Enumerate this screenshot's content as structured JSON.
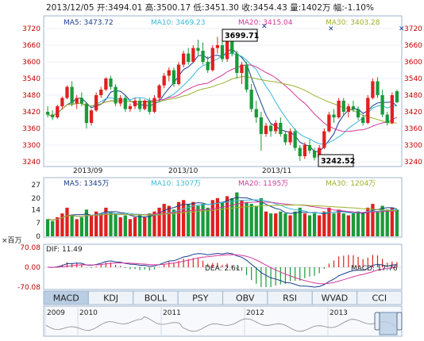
{
  "header": {
    "date": "2013/12/05",
    "open_label": "开:",
    "open": "3494.01",
    "high_label": "高:",
    "high": "3500.17",
    "low_label": "低:",
    "low": "3451.30",
    "close_label": "收:",
    "close": "3454.43",
    "volume_label": "量:",
    "volume": "1402万",
    "change_label": "幅:",
    "change": "-1.10%"
  },
  "price_ma": [
    {
      "label": "MA5: 3473.72",
      "color": "#1a3d8f"
    },
    {
      "label": "MA10: 3469.23",
      "color": "#3bb8d8"
    },
    {
      "label": "MA20: 3415.04",
      "color": "#d4379b"
    },
    {
      "label": "MA30: 3403.28",
      "color": "#9ab22a"
    }
  ],
  "price_axis": [
    "3720",
    "3660",
    "3600",
    "3540",
    "3480",
    "3420",
    "3360",
    "3300",
    "3240"
  ],
  "date_labels": [
    "2013/09",
    "2013/10",
    "2013/11"
  ],
  "callouts": {
    "high": "3699.71",
    "low": "3242.52"
  },
  "volume_ma": [
    {
      "label": "MA5: 1345万",
      "color": "#1a3d8f"
    },
    {
      "label": "MA10: 1307万",
      "color": "#3bb8d8"
    },
    {
      "label": "MA20: 1195万",
      "color": "#d4379b"
    },
    {
      "label": "MA30: 1204万",
      "color": "#9ab22a"
    }
  ],
  "volume_axis": [
    "27",
    "20",
    "14",
    "7",
    "0"
  ],
  "volume_unit": "×百万",
  "macd_labels": {
    "dif": "DIF: 11.49",
    "dea": "DEA: 2.61",
    "macd": "MACD: 17.76",
    "dif_color": "#1a3d8f",
    "dea_color": "#d4379b",
    "macd_color": "#c40000"
  },
  "macd_axis": [
    "70.08",
    "0.00",
    "-70.08"
  ],
  "tabs": [
    "MACD",
    "KDJ",
    "BOLL",
    "PSY",
    "OBV",
    "RSI",
    "WVAD",
    "CCI"
  ],
  "active_tab": "MACD",
  "timeline_years": [
    "2009",
    "2010",
    "2011",
    "2012",
    "2013"
  ],
  "colors": {
    "up": "#e02020",
    "down": "#1a9a3a",
    "axis": "#c40000",
    "border": "#9fb4cc",
    "tab_active": "#b9cde3"
  },
  "chart_data": {
    "type": "candlestick",
    "ylim": [
      3240,
      3720
    ],
    "candles": [
      [
        3420,
        3440,
        3400,
        3410
      ],
      [
        3410,
        3425,
        3390,
        3400
      ],
      [
        3400,
        3445,
        3395,
        3440
      ],
      [
        3440,
        3475,
        3430,
        3470
      ],
      [
        3470,
        3515,
        3465,
        3510
      ],
      [
        3510,
        3530,
        3440,
        3450
      ],
      [
        3450,
        3480,
        3430,
        3470
      ],
      [
        3470,
        3490,
        3440,
        3450
      ],
      [
        3450,
        3455,
        3360,
        3380
      ],
      [
        3380,
        3430,
        3370,
        3425
      ],
      [
        3425,
        3490,
        3420,
        3480
      ],
      [
        3480,
        3510,
        3470,
        3500
      ],
      [
        3500,
        3545,
        3495,
        3540
      ],
      [
        3540,
        3550,
        3500,
        3510
      ],
      [
        3510,
        3520,
        3440,
        3450
      ],
      [
        3450,
        3480,
        3440,
        3470
      ],
      [
        3470,
        3480,
        3420,
        3430
      ],
      [
        3430,
        3450,
        3420,
        3440
      ],
      [
        3440,
        3470,
        3430,
        3460
      ],
      [
        3460,
        3470,
        3420,
        3430
      ],
      [
        3430,
        3465,
        3425,
        3460
      ],
      [
        3460,
        3470,
        3410,
        3420
      ],
      [
        3420,
        3480,
        3415,
        3470
      ],
      [
        3470,
        3520,
        3460,
        3515
      ],
      [
        3515,
        3560,
        3505,
        3550
      ],
      [
        3550,
        3580,
        3530,
        3570
      ],
      [
        3570,
        3580,
        3510,
        3520
      ],
      [
        3520,
        3600,
        3515,
        3590
      ],
      [
        3590,
        3640,
        3580,
        3630
      ],
      [
        3630,
        3650,
        3590,
        3600
      ],
      [
        3600,
        3660,
        3595,
        3650
      ],
      [
        3650,
        3680,
        3620,
        3640
      ],
      [
        3640,
        3670,
        3590,
        3600
      ],
      [
        3600,
        3620,
        3560,
        3570
      ],
      [
        3570,
        3660,
        3565,
        3650
      ],
      [
        3650,
        3690,
        3630,
        3660
      ],
      [
        3660,
        3680,
        3600,
        3610
      ],
      [
        3610,
        3700,
        3600,
        3690
      ],
      [
        3690,
        3700,
        3620,
        3630
      ],
      [
        3630,
        3640,
        3540,
        3560
      ],
      [
        3560,
        3600,
        3520,
        3590
      ],
      [
        3590,
        3600,
        3490,
        3500
      ],
      [
        3500,
        3520,
        3420,
        3430
      ],
      [
        3430,
        3460,
        3380,
        3400
      ],
      [
        3400,
        3420,
        3280,
        3340
      ],
      [
        3340,
        3380,
        3330,
        3370
      ],
      [
        3370,
        3380,
        3330,
        3350
      ],
      [
        3350,
        3390,
        3340,
        3380
      ],
      [
        3380,
        3400,
        3330,
        3340
      ],
      [
        3340,
        3350,
        3300,
        3310
      ],
      [
        3310,
        3360,
        3300,
        3350
      ],
      [
        3350,
        3360,
        3280,
        3290
      ],
      [
        3290,
        3300,
        3243,
        3260
      ],
      [
        3260,
        3310,
        3250,
        3300
      ],
      [
        3300,
        3320,
        3270,
        3280
      ],
      [
        3280,
        3290,
        3245,
        3255
      ],
      [
        3255,
        3300,
        3250,
        3290
      ],
      [
        3290,
        3360,
        3285,
        3350
      ],
      [
        3350,
        3420,
        3345,
        3410
      ],
      [
        3410,
        3430,
        3380,
        3400
      ],
      [
        3400,
        3470,
        3395,
        3460
      ],
      [
        3460,
        3470,
        3410,
        3420
      ],
      [
        3420,
        3450,
        3400,
        3440
      ],
      [
        3440,
        3460,
        3420,
        3430
      ],
      [
        3430,
        3440,
        3390,
        3400
      ],
      [
        3400,
        3410,
        3370,
        3380
      ],
      [
        3380,
        3480,
        3375,
        3470
      ],
      [
        3470,
        3540,
        3465,
        3530
      ],
      [
        3530,
        3545,
        3470,
        3480
      ],
      [
        3480,
        3500,
        3400,
        3410
      ],
      [
        3410,
        3420,
        3370,
        3380
      ],
      [
        3380,
        3490,
        3375,
        3480
      ],
      [
        3494.01,
        3500.17,
        3451.3,
        3454.43
      ]
    ],
    "volume": [
      9,
      8,
      10,
      12,
      15,
      11,
      9,
      10,
      14,
      11,
      13,
      12,
      15,
      13,
      12,
      10,
      11,
      9,
      10,
      11,
      10,
      12,
      13,
      15,
      17,
      16,
      14,
      18,
      19,
      17,
      18,
      16,
      17,
      15,
      19,
      20,
      18,
      21,
      20,
      23,
      19,
      18,
      17,
      16,
      20,
      13,
      12,
      12,
      13,
      12,
      11,
      13,
      15,
      12,
      11,
      12,
      11,
      13,
      15,
      12,
      14,
      12,
      11,
      12,
      13,
      12,
      15,
      17,
      13,
      16,
      14,
      15,
      14
    ],
    "macd": {
      "ylim": [
        -70.08,
        70.08
      ]
    }
  }
}
